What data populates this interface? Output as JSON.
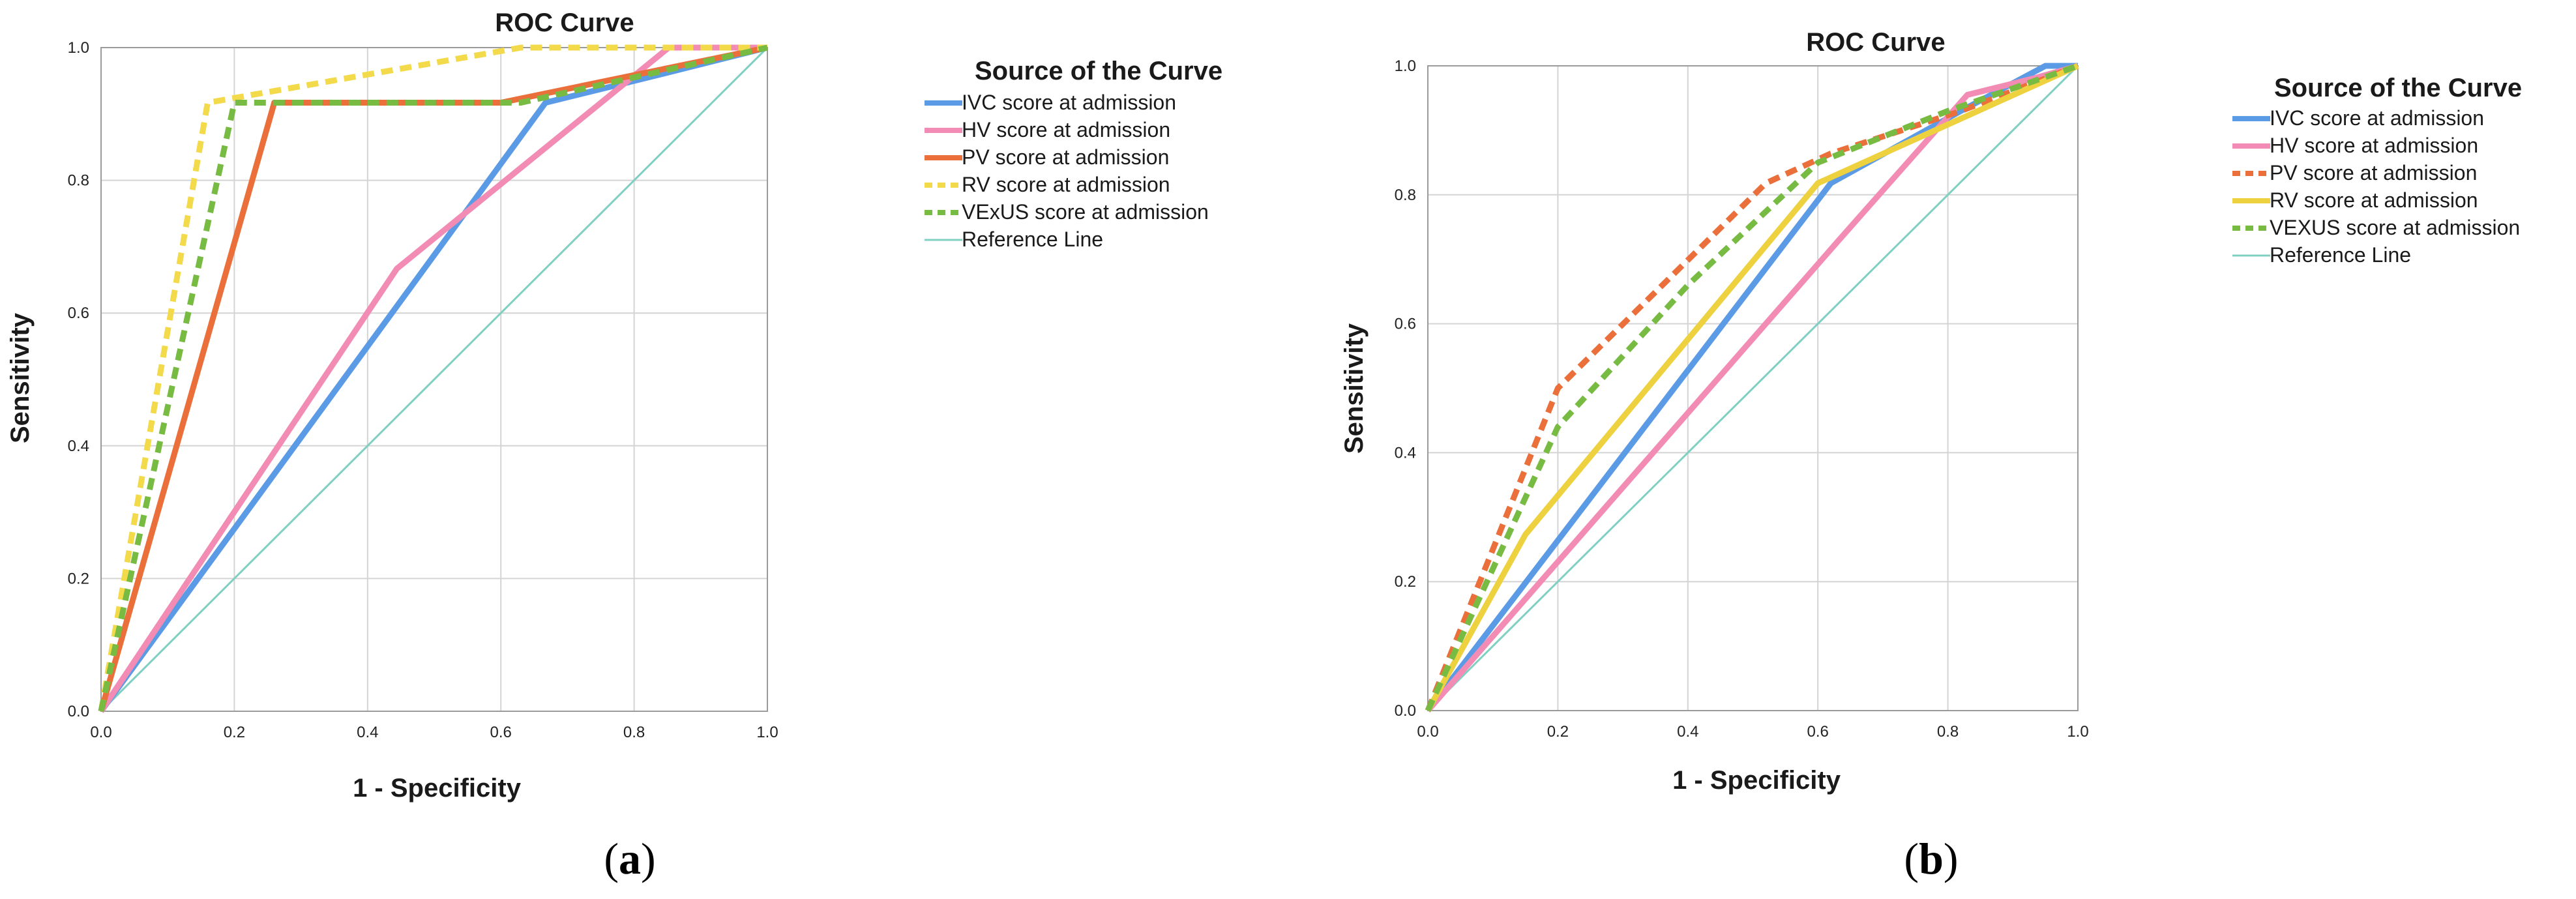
{
  "colors": {
    "grid": "#d4d4d4",
    "frame": "#9a9a9a"
  },
  "chart_data": [
    {
      "type": "line",
      "title": "ROC Curve",
      "xlabel": "1 - Specificity",
      "ylabel": "Sensitivity",
      "xlim": [
        0,
        1
      ],
      "ylim": [
        0,
        1
      ],
      "xticks": [
        "0.0",
        "0.2",
        "0.4",
        "0.6",
        "0.8",
        "1.0"
      ],
      "yticks": [
        "0.0",
        "0.2",
        "0.4",
        "0.6",
        "0.8",
        "1.0"
      ],
      "grid": true,
      "panel_label": "a",
      "legend_title": "Source of the Curve",
      "legend_position": "right",
      "series": [
        {
          "name": "IVC score at admission",
          "color": "#5b9be6",
          "style": "solid",
          "points": [
            [
              0,
              0
            ],
            [
              0.667,
              0.917
            ],
            [
              0.833,
              0.958
            ],
            [
              1,
              1
            ]
          ]
        },
        {
          "name": "HV score at admission",
          "color": "#f28cb5",
          "style": "solid",
          "points": [
            [
              0,
              0
            ],
            [
              0.444,
              0.667
            ],
            [
              0.852,
              1
            ],
            [
              1,
              1
            ]
          ]
        },
        {
          "name": "PV score at admission",
          "color": "#ea6f3b",
          "style": "solid",
          "points": [
            [
              0,
              0
            ],
            [
              0.26,
              0.917
            ],
            [
              0.6,
              0.917
            ],
            [
              1,
              1
            ]
          ]
        },
        {
          "name": "RV score at admission",
          "color": "#f2da4a",
          "style": "dashed",
          "points": [
            [
              0,
              0
            ],
            [
              0.16,
              0.917
            ],
            [
              0.63,
              1
            ],
            [
              1,
              1
            ]
          ]
        },
        {
          "name": "VExUS score at admission",
          "color": "#78bb43",
          "style": "dashed",
          "points": [
            [
              0,
              0
            ],
            [
              0.2,
              0.917
            ],
            [
              0.63,
              0.917
            ],
            [
              1,
              1
            ]
          ]
        },
        {
          "name": "Reference Line",
          "color": "#7fcfc2",
          "style": "thin",
          "points": [
            [
              0,
              0
            ],
            [
              1,
              1
            ]
          ]
        }
      ]
    },
    {
      "type": "line",
      "title": "ROC Curve",
      "xlabel": "1 - Specificity",
      "ylabel": "Sensitivity",
      "xlim": [
        0,
        1
      ],
      "ylim": [
        0,
        1
      ],
      "xticks": [
        "0.0",
        "0.2",
        "0.4",
        "0.6",
        "0.8",
        "1.0"
      ],
      "yticks": [
        "0.0",
        "0.2",
        "0.4",
        "0.6",
        "0.8",
        "1.0"
      ],
      "grid": true,
      "panel_label": "b",
      "legend_title": "Source of the Curve",
      "legend_position": "right",
      "series": [
        {
          "name": "IVC score at admission",
          "color": "#5b9be6",
          "style": "solid",
          "points": [
            [
              0,
              0
            ],
            [
              0.62,
              0.818
            ],
            [
              0.82,
              0.93
            ],
            [
              0.95,
              1
            ],
            [
              1,
              1
            ]
          ]
        },
        {
          "name": "HV score at admission",
          "color": "#f28cb5",
          "style": "solid",
          "points": [
            [
              0,
              0
            ],
            [
              0.63,
              0.727
            ],
            [
              0.83,
              0.955
            ],
            [
              0.93,
              0.98
            ],
            [
              1,
              1
            ]
          ]
        },
        {
          "name": "PV score at admission",
          "color": "#ea6f3b",
          "style": "dashed",
          "points": [
            [
              0,
              0
            ],
            [
              0.2,
              0.5
            ],
            [
              0.52,
              0.818
            ],
            [
              0.62,
              0.864
            ],
            [
              0.82,
              0.93
            ],
            [
              1,
              1
            ]
          ]
        },
        {
          "name": "RV score at admission",
          "color": "#edd13f",
          "style": "solid",
          "points": [
            [
              0,
              0
            ],
            [
              0.15,
              0.273
            ],
            [
              0.6,
              0.818
            ],
            [
              0.8,
              0.909
            ],
            [
              1,
              1
            ]
          ]
        },
        {
          "name": "VEXUS score at admission",
          "color": "#78bb43",
          "style": "dashed",
          "points": [
            [
              0,
              0
            ],
            [
              0.2,
              0.44
            ],
            [
              0.4,
              0.66
            ],
            [
              0.6,
              0.85
            ],
            [
              0.8,
              0.93
            ],
            [
              1,
              1
            ]
          ]
        },
        {
          "name": "Reference Line",
          "color": "#7fcfc2",
          "style": "thin",
          "points": [
            [
              0,
              0
            ],
            [
              1,
              1
            ]
          ]
        }
      ]
    }
  ]
}
